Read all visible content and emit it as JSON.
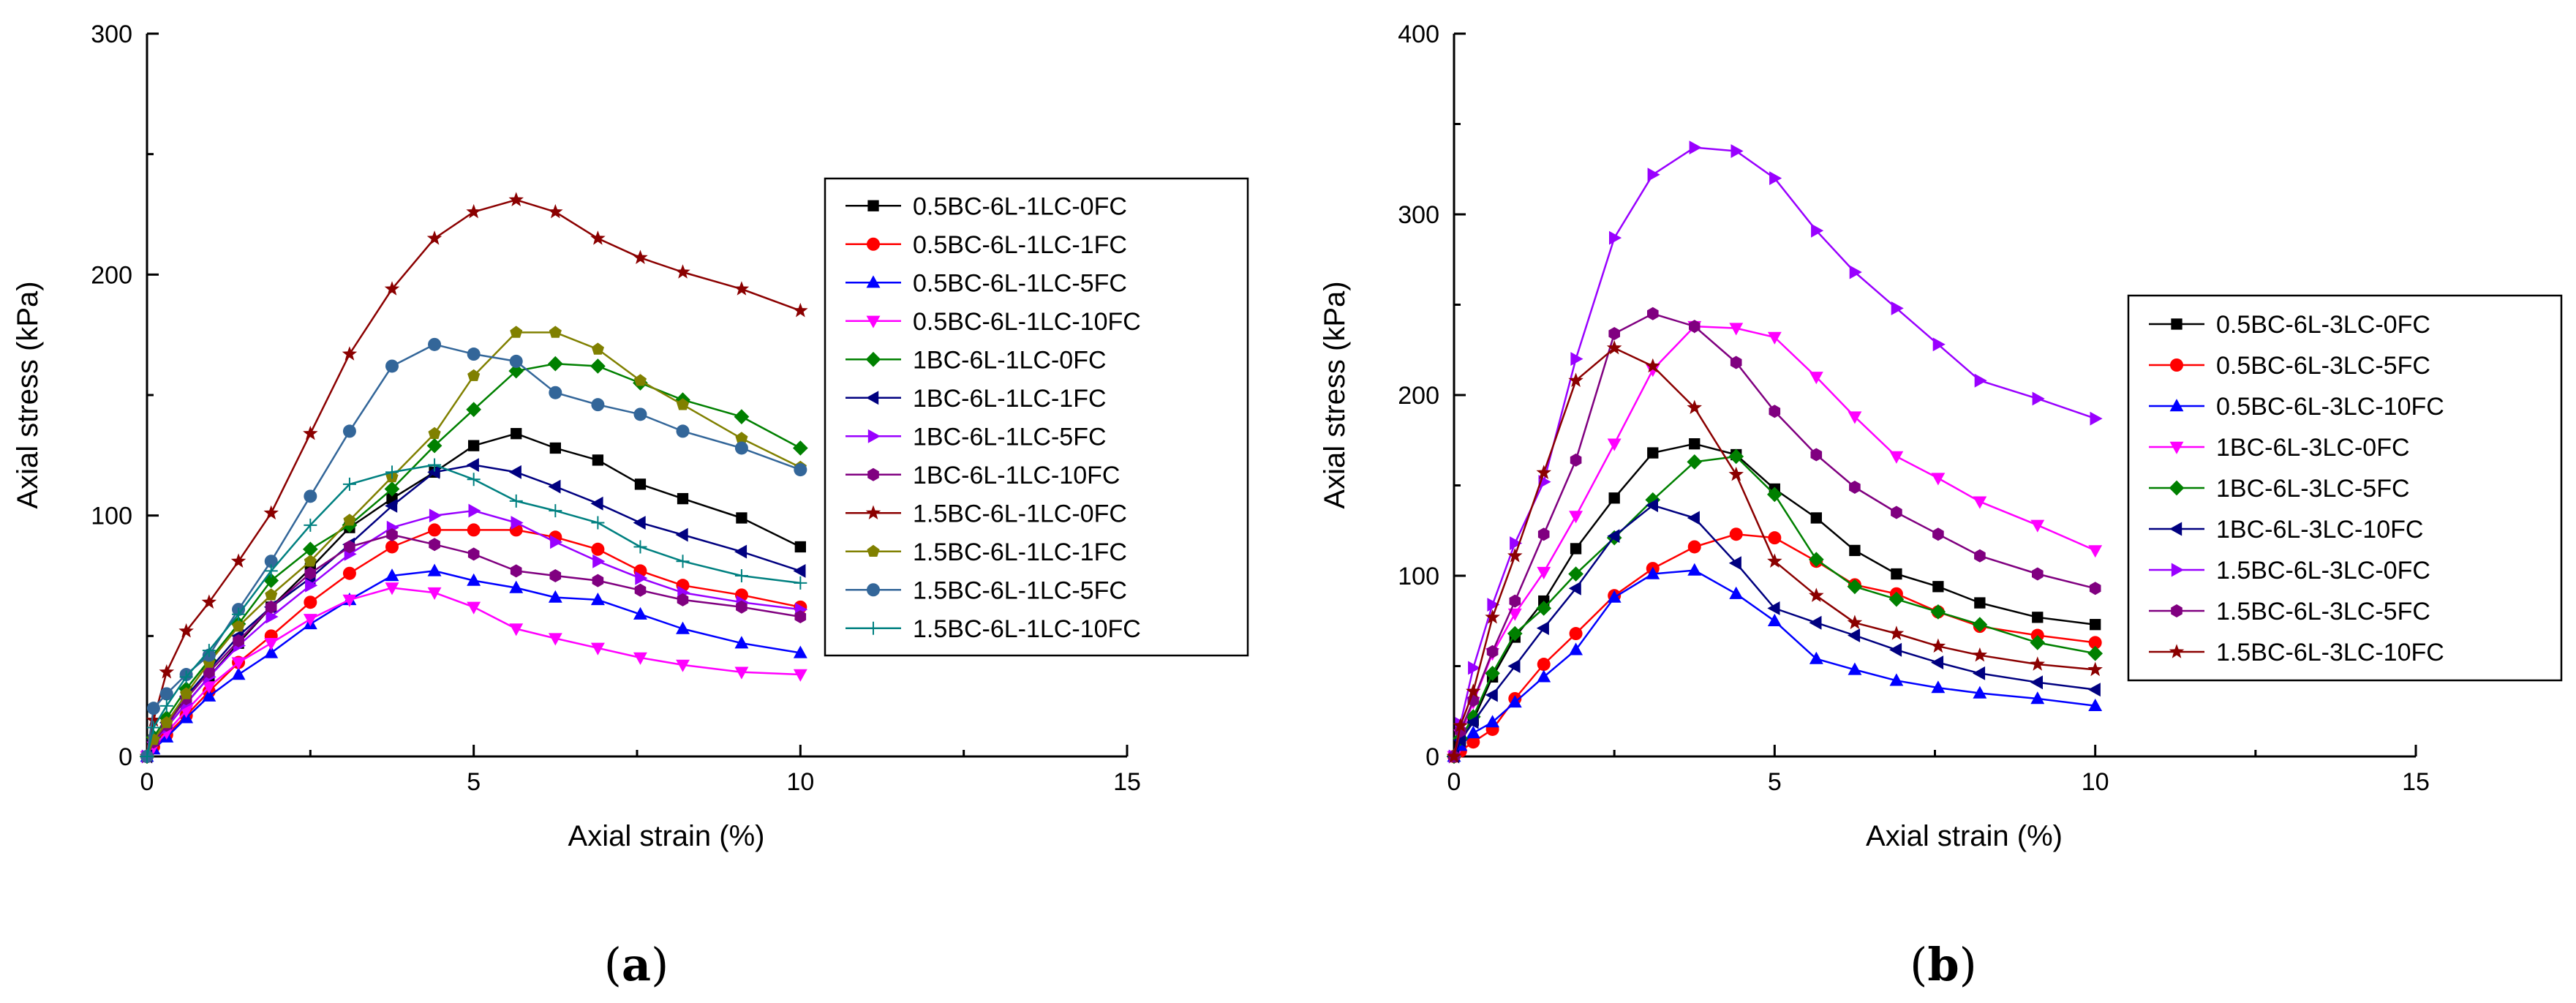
{
  "chart_data": [
    {
      "type": "line",
      "panel": "(a)",
      "panel_letter": "a",
      "xlabel": "Axial strain (%)",
      "ylabel": "Axial stress (kPa)",
      "xlim": [
        0,
        15
      ],
      "ylim": [
        0,
        300
      ],
      "xticks": [
        0,
        5,
        10,
        15
      ],
      "yticks": [
        0,
        100,
        200,
        300
      ],
      "legend_position": "right",
      "series": [
        {
          "name": "0.5BC-6L-1LC-0FC",
          "color": "#000000",
          "marker": "square",
          "x": [
            0,
            0.1,
            0.3,
            0.6,
            0.95,
            1.4,
            1.9,
            2.5,
            3.1,
            3.75,
            4.4,
            5.0,
            5.65,
            6.25,
            6.9,
            7.55,
            8.2,
            9.1,
            10.0
          ],
          "y": [
            0,
            5,
            12,
            22,
            33,
            47,
            62,
            78,
            95,
            107,
            118,
            129,
            134,
            128,
            123,
            113,
            107,
            99,
            87
          ]
        },
        {
          "name": "0.5BC-6L-1LC-1FC",
          "color": "#ff0000",
          "marker": "circle",
          "x": [
            0,
            0.1,
            0.3,
            0.6,
            0.95,
            1.4,
            1.9,
            2.5,
            3.1,
            3.75,
            4.4,
            5.0,
            5.65,
            6.25,
            6.9,
            7.55,
            8.2,
            9.1,
            10.0
          ],
          "y": [
            0,
            4,
            9,
            17,
            27,
            39,
            50,
            64,
            76,
            87,
            94,
            94,
            94,
            91,
            86,
            77,
            71,
            67,
            62
          ]
        },
        {
          "name": "0.5BC-6L-1LC-5FC",
          "color": "#0000ff",
          "marker": "triangle-up",
          "x": [
            0,
            0.1,
            0.3,
            0.6,
            0.95,
            1.4,
            1.9,
            2.5,
            3.1,
            3.75,
            4.4,
            5.0,
            5.65,
            6.25,
            6.9,
            7.55,
            8.2,
            9.1,
            10.0
          ],
          "y": [
            0,
            3,
            8,
            16,
            25,
            34,
            43,
            55,
            65,
            75,
            77,
            73,
            70,
            66,
            65,
            59,
            53,
            47,
            43
          ]
        },
        {
          "name": "0.5BC-6L-1LC-10FC",
          "color": "#ff00ff",
          "marker": "triangle-down",
          "x": [
            0,
            0.1,
            0.3,
            0.6,
            0.95,
            1.4,
            1.9,
            2.5,
            3.1,
            3.75,
            4.4,
            5.0,
            5.65,
            6.25,
            6.9,
            7.55,
            8.2,
            9.1,
            10.0
          ],
          "y": [
            0,
            4,
            10,
            19,
            29,
            39,
            47,
            57,
            65,
            70,
            68,
            62,
            53,
            49,
            45,
            41,
            38,
            35,
            34
          ]
        },
        {
          "name": "1BC-6L-1LC-0FC",
          "color": "#008000",
          "marker": "diamond",
          "x": [
            0,
            0.1,
            0.3,
            0.6,
            0.95,
            1.4,
            1.9,
            2.5,
            3.1,
            3.75,
            4.4,
            5.0,
            5.65,
            6.25,
            6.9,
            7.55,
            8.2,
            9.1,
            10.0
          ],
          "y": [
            0,
            8,
            16,
            28,
            40,
            55,
            73,
            86,
            96,
            111,
            129,
            144,
            160,
            163,
            162,
            155,
            148,
            141,
            128
          ]
        },
        {
          "name": "1BC-6L-1LC-1FC",
          "color": "#000080",
          "marker": "triangle-left",
          "x": [
            0,
            0.1,
            0.3,
            0.6,
            0.95,
            1.4,
            1.9,
            2.5,
            3.1,
            3.75,
            4.4,
            5.0,
            5.65,
            6.25,
            6.9,
            7.55,
            8.2,
            9.1,
            10.0
          ],
          "y": [
            0,
            7,
            14,
            25,
            36,
            50,
            62,
            74,
            88,
            104,
            118,
            121,
            118,
            112,
            105,
            97,
            92,
            85,
            77
          ]
        },
        {
          "name": "1BC-6L-1LC-5FC",
          "color": "#9900ff",
          "marker": "triangle-right",
          "x": [
            0,
            0.1,
            0.3,
            0.6,
            0.95,
            1.4,
            1.9,
            2.5,
            3.1,
            3.75,
            4.4,
            5.0,
            5.65,
            6.25,
            6.9,
            7.55,
            8.2,
            9.1,
            10.0
          ],
          "y": [
            0,
            6,
            12,
            22,
            33,
            46,
            58,
            71,
            84,
            95,
            100,
            102,
            97,
            89,
            81,
            74,
            68,
            64,
            61
          ]
        },
        {
          "name": "1BC-6L-1LC-10FC",
          "color": "#800080",
          "marker": "hexagon",
          "x": [
            0,
            0.1,
            0.3,
            0.6,
            0.95,
            1.4,
            1.9,
            2.5,
            3.1,
            3.75,
            4.4,
            5.0,
            5.65,
            6.25,
            6.9,
            7.55,
            8.2,
            9.1,
            10.0
          ],
          "y": [
            0,
            6,
            13,
            24,
            35,
            48,
            62,
            76,
            87,
            92,
            88,
            84,
            77,
            75,
            73,
            69,
            65,
            62,
            58
          ]
        },
        {
          "name": "1.5BC-6L-1LC-0FC",
          "color": "#8b0000",
          "marker": "star",
          "x": [
            0,
            0.1,
            0.3,
            0.6,
            0.95,
            1.4,
            1.9,
            2.5,
            3.1,
            3.75,
            4.4,
            5.0,
            5.65,
            6.25,
            6.9,
            7.55,
            8.2,
            9.1,
            10.0
          ],
          "y": [
            0,
            15,
            35,
            52,
            64,
            81,
            101,
            134,
            167,
            194,
            215,
            226,
            231,
            226,
            215,
            207,
            201,
            194,
            185
          ]
        },
        {
          "name": "1.5BC-6L-1LC-1FC",
          "color": "#808000",
          "marker": "pentagon",
          "x": [
            0,
            0.1,
            0.3,
            0.6,
            0.95,
            1.4,
            1.9,
            2.5,
            3.1,
            3.75,
            4.4,
            5.0,
            5.65,
            6.25,
            6.9,
            7.55,
            8.2,
            9.1,
            10.0
          ],
          "y": [
            0,
            7,
            14,
            26,
            39,
            54,
            67,
            81,
            98,
            116,
            134,
            158,
            176,
            176,
            169,
            156,
            146,
            132,
            120
          ]
        },
        {
          "name": "1.5BC-6L-1LC-5FC",
          "color": "#336699",
          "marker": "circle",
          "x": [
            0,
            0.1,
            0.3,
            0.6,
            0.95,
            1.4,
            1.9,
            2.5,
            3.1,
            3.75,
            4.4,
            5.0,
            5.65,
            6.25,
            6.9,
            7.55,
            8.2,
            9.1,
            10.0
          ],
          "y": [
            0,
            20,
            26,
            34,
            42,
            61,
            81,
            108,
            135,
            162,
            171,
            167,
            164,
            151,
            146,
            142,
            135,
            128,
            119
          ]
        },
        {
          "name": "1.5BC-6L-1LC-10FC",
          "color": "#008080",
          "marker": "plus",
          "x": [
            0,
            0.1,
            0.3,
            0.6,
            0.95,
            1.4,
            1.9,
            2.5,
            3.1,
            3.75,
            4.4,
            5.0,
            5.65,
            6.25,
            6.9,
            7.55,
            8.2,
            9.1,
            10.0
          ],
          "y": [
            0,
            12,
            21,
            33,
            44,
            59,
            77,
            96,
            113,
            118,
            121,
            115,
            106,
            102,
            97,
            87,
            81,
            75,
            72
          ]
        }
      ]
    },
    {
      "type": "line",
      "panel": "(b)",
      "panel_letter": "b",
      "xlabel": "Axial strain (%)",
      "ylabel": "Axial stress (kPa)",
      "xlim": [
        0,
        15
      ],
      "ylim": [
        0,
        400
      ],
      "xticks": [
        0,
        5,
        10,
        15
      ],
      "yticks": [
        0,
        100,
        200,
        300,
        400
      ],
      "legend_position": "right",
      "series": [
        {
          "name": "0.5BC-6L-3LC-0FC",
          "color": "#000000",
          "marker": "square",
          "x": [
            0,
            0.1,
            0.3,
            0.6,
            0.95,
            1.4,
            1.9,
            2.5,
            3.1,
            3.75,
            4.4,
            5.0,
            5.65,
            6.25,
            6.9,
            7.55,
            8.2,
            9.1,
            10.0
          ],
          "y": [
            0,
            8,
            20,
            44,
            66,
            86,
            115,
            143,
            168,
            173,
            167,
            148,
            132,
            114,
            101,
            94,
            85,
            77,
            73
          ]
        },
        {
          "name": "0.5BC-6L-3LC-5FC",
          "color": "#ff0000",
          "marker": "circle",
          "x": [
            0,
            0.1,
            0.3,
            0.6,
            0.95,
            1.4,
            1.9,
            2.5,
            3.1,
            3.75,
            4.4,
            5.0,
            5.65,
            6.25,
            6.9,
            7.55,
            8.2,
            9.1,
            10.0
          ],
          "y": [
            0,
            3,
            8,
            15,
            32,
            51,
            68,
            89,
            104,
            116,
            123,
            121,
            108,
            95,
            90,
            80,
            72,
            67,
            63
          ]
        },
        {
          "name": "0.5BC-6L-3LC-10FC",
          "color": "#0000ff",
          "marker": "triangle-up",
          "x": [
            0,
            0.1,
            0.3,
            0.6,
            0.95,
            1.4,
            1.9,
            2.5,
            3.1,
            3.75,
            4.4,
            5.0,
            5.65,
            6.25,
            6.9,
            7.55,
            8.2,
            9.1,
            10.0
          ],
          "y": [
            0,
            6,
            13,
            19,
            30,
            44,
            59,
            88,
            101,
            103,
            90,
            75,
            54,
            48,
            42,
            38,
            35,
            32,
            28
          ]
        },
        {
          "name": "1BC-6L-3LC-0FC",
          "color": "#ff00ff",
          "marker": "triangle-down",
          "x": [
            0,
            0.1,
            0.3,
            0.6,
            0.95,
            1.4,
            1.9,
            2.5,
            3.1,
            3.75,
            4.4,
            5.0,
            5.65,
            6.25,
            6.9,
            7.55,
            8.2,
            9.1,
            10.0
          ],
          "y": [
            0,
            12,
            30,
            57,
            79,
            102,
            133,
            173,
            214,
            238,
            237,
            232,
            210,
            188,
            166,
            154,
            141,
            128,
            114
          ]
        },
        {
          "name": "1BC-6L-3LC-5FC",
          "color": "#008000",
          "marker": "diamond",
          "x": [
            0,
            0.1,
            0.3,
            0.6,
            0.95,
            1.4,
            1.9,
            2.5,
            3.1,
            3.75,
            4.4,
            5.0,
            5.65,
            6.25,
            6.9,
            7.55,
            8.2,
            9.1,
            10.0
          ],
          "y": [
            0,
            10,
            22,
            46,
            68,
            82,
            101,
            121,
            142,
            163,
            166,
            145,
            109,
            94,
            87,
            80,
            73,
            63,
            57
          ]
        },
        {
          "name": "1BC-6L-3LC-10FC",
          "color": "#000080",
          "marker": "triangle-left",
          "x": [
            0,
            0.1,
            0.3,
            0.6,
            0.95,
            1.4,
            1.9,
            2.5,
            3.1,
            3.75,
            4.4,
            5.0,
            5.65,
            6.25,
            6.9,
            7.55,
            8.2,
            9.1,
            10.0
          ],
          "y": [
            0,
            9,
            19,
            34,
            50,
            71,
            93,
            122,
            139,
            132,
            107,
            82,
            74,
            67,
            59,
            52,
            46,
            41,
            37
          ]
        },
        {
          "name": "1.5BC-6L-3LC-0FC",
          "color": "#9900ff",
          "marker": "triangle-right",
          "x": [
            0,
            0.1,
            0.3,
            0.6,
            0.95,
            1.4,
            1.9,
            2.5,
            3.1,
            3.75,
            4.4,
            5.0,
            5.65,
            6.25,
            6.9,
            7.55,
            8.2,
            9.1,
            10.0
          ],
          "y": [
            0,
            18,
            49,
            84,
            118,
            152,
            220,
            287,
            322,
            337,
            335,
            320,
            291,
            268,
            248,
            228,
            208,
            198,
            187
          ]
        },
        {
          "name": "1.5BC-6L-3LC-5FC",
          "color": "#800080",
          "marker": "hexagon",
          "x": [
            0,
            0.1,
            0.3,
            0.6,
            0.95,
            1.4,
            1.9,
            2.5,
            3.1,
            3.75,
            4.4,
            5.0,
            5.65,
            6.25,
            6.9,
            7.55,
            8.2,
            9.1,
            10.0
          ],
          "y": [
            0,
            14,
            31,
            58,
            86,
            123,
            164,
            234,
            245,
            238,
            218,
            191,
            167,
            149,
            135,
            123,
            111,
            101,
            93
          ]
        },
        {
          "name": "1.5BC-6L-3LC-10FC",
          "color": "#8b0000",
          "marker": "star",
          "x": [
            0,
            0.1,
            0.3,
            0.6,
            0.95,
            1.4,
            1.9,
            2.5,
            3.1,
            3.75,
            4.4,
            5.0,
            5.65,
            6.25,
            6.9,
            7.55,
            8.2,
            9.1,
            10.0
          ],
          "y": [
            0,
            17,
            36,
            77,
            111,
            157,
            208,
            226,
            216,
            193,
            156,
            108,
            89,
            74,
            68,
            61,
            56,
            51,
            48
          ]
        }
      ]
    }
  ]
}
